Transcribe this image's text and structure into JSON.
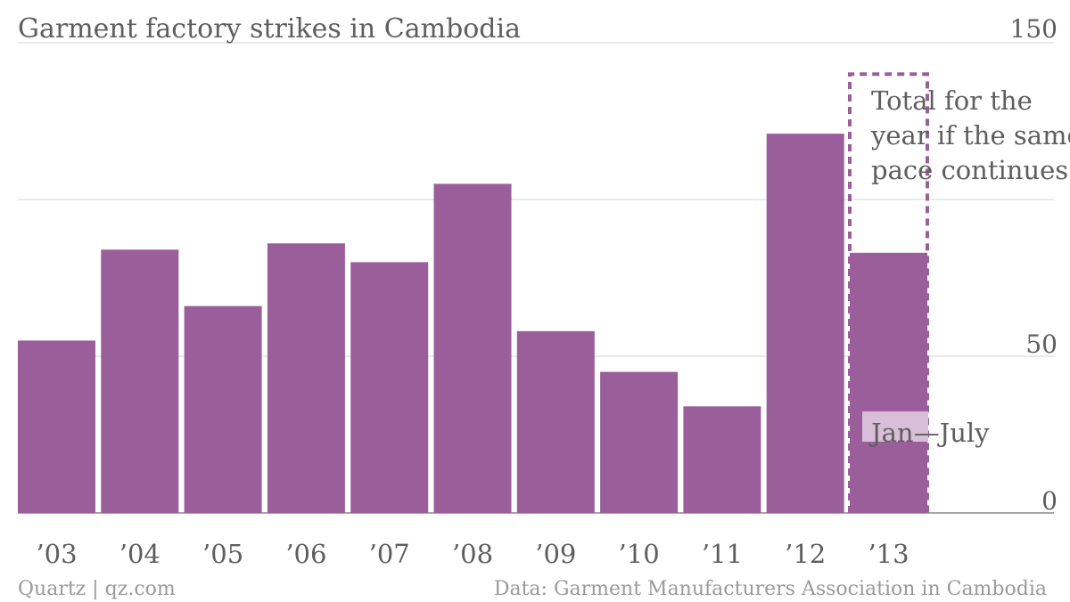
{
  "chart_data": {
    "type": "bar",
    "title": "Garment factory strikes in Cambodia",
    "categories": [
      "’03",
      "’04",
      "’05",
      "’06",
      "’07",
      "’08",
      "’09",
      "’10",
      "’11",
      "’12",
      "’13"
    ],
    "values": [
      55,
      84,
      66,
      86,
      80,
      105,
      58,
      45,
      34,
      121,
      83
    ],
    "projected": {
      "category": "’13",
      "value": 140
    },
    "ylim": [
      0,
      150
    ],
    "yticks": [
      0,
      50,
      150
    ],
    "grid": true,
    "xlabel": "",
    "ylabel": "",
    "annotations": {
      "projection": [
        "Total for the",
        "year if the same",
        "pace continues"
      ],
      "partial": "Jan—July"
    },
    "colors": {
      "bar": "#9a5f9a",
      "projection_outline": "#9a5f9a",
      "partial_label_bg": "#d9bed9",
      "grid": "#e3e3e3",
      "text": "#5e5e5e",
      "footer_text": "#9a9a9a"
    }
  },
  "footer": {
    "source_left": "Quartz | qz.com",
    "source_right": "Data: Garment Manufacturers Association in Cambodia"
  }
}
